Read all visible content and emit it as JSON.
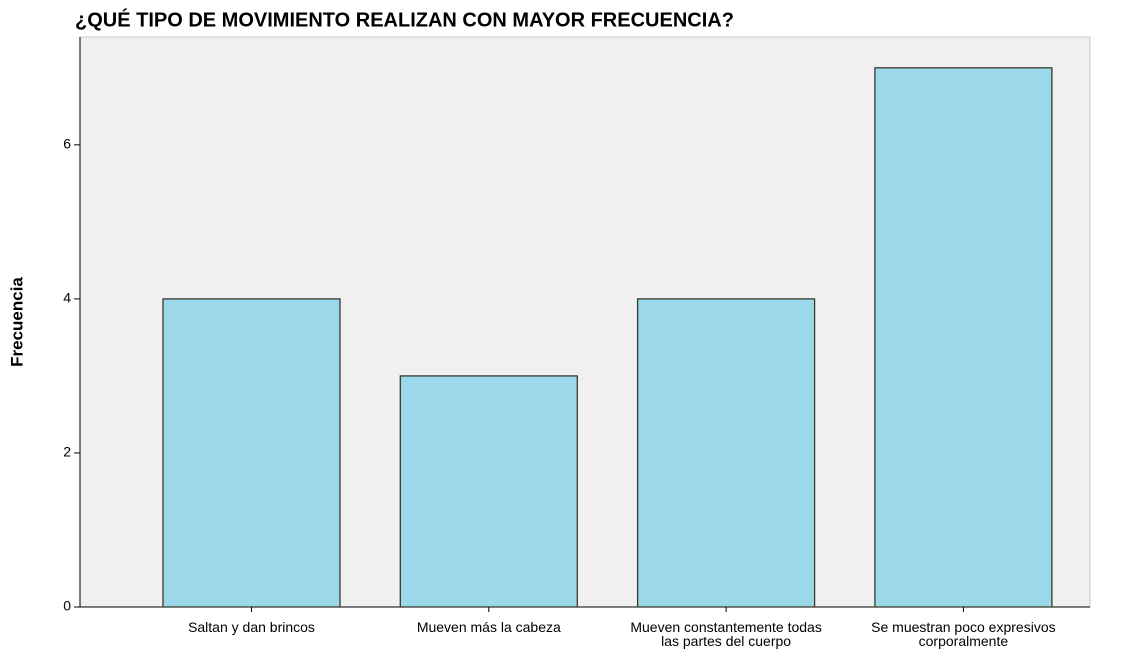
{
  "chart_data": {
    "type": "bar",
    "title": "¿QUÉ TIPO DE MOVIMIENTO REALIZAN CON MAYOR  FRECUENCIA?",
    "y_label": "Frecuencia",
    "categories": [
      "Saltan y dan brincos",
      "Mueven más la cabeza",
      "Mueven constantemente todas las partes del cuerpo",
      "Se muestran poco expresivos corporalmente"
    ],
    "values": [
      4,
      3,
      4,
      7
    ],
    "color": "#9ad8ea",
    "ylim": [
      0,
      7.4
    ],
    "yticks": [
      0,
      2,
      4,
      6
    ],
    "grid": false
  }
}
